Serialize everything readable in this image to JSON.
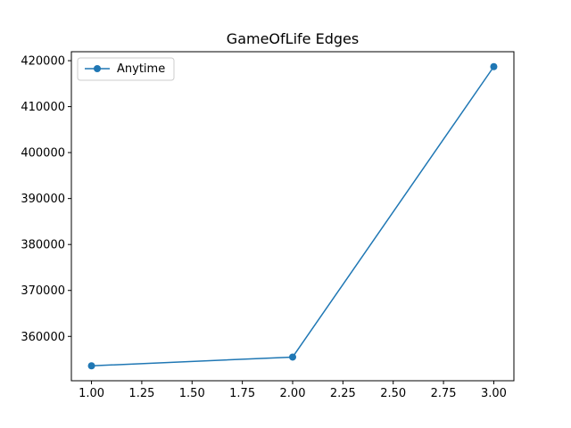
{
  "chart_data": {
    "type": "line",
    "title": "GameOfLife Edges",
    "xlabel": "",
    "ylabel": "",
    "x": [
      1.0,
      2.0,
      3.0
    ],
    "series": [
      {
        "name": "Anytime",
        "values": [
          353600,
          355500,
          418700
        ],
        "color": "#1f77b4",
        "marker": "circle"
      }
    ],
    "xlim": [
      0.9,
      3.1
    ],
    "ylim": [
      350350,
      421950
    ],
    "xticks": [
      1.0,
      1.25,
      1.5,
      1.75,
      2.0,
      2.25,
      2.5,
      2.75,
      3.0
    ],
    "xtick_labels": [
      "1.00",
      "1.25",
      "1.50",
      "1.75",
      "2.00",
      "2.25",
      "2.50",
      "2.75",
      "3.00"
    ],
    "yticks": [
      360000,
      370000,
      380000,
      390000,
      400000,
      410000,
      420000
    ],
    "ytick_labels": [
      "360000",
      "370000",
      "380000",
      "390000",
      "400000",
      "410000",
      "420000"
    ],
    "grid": false,
    "legend_position": "top-left"
  }
}
